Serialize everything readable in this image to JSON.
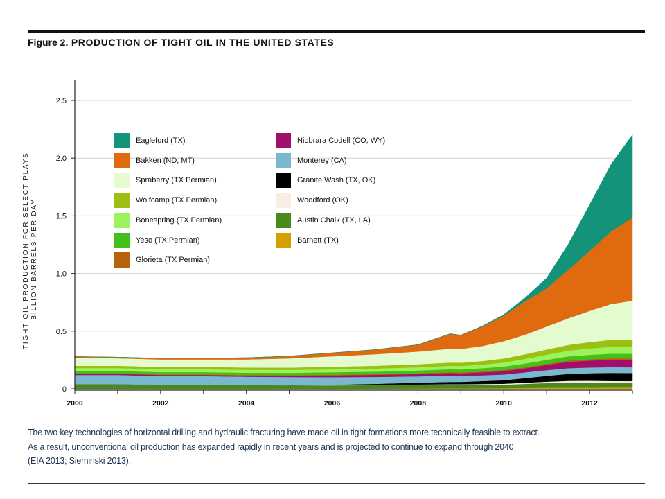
{
  "figure": {
    "label": "Figure 2.",
    "title": "PRODUCTION OF TIGHT OIL IN THE UNITED STATES"
  },
  "caption": [
    "The two key technologies of horizontal drilling and hydraulic fracturing have made oil in tight formations more technically feasible to extract.",
    "As a result, unconventional oil production has expanded rapidly in recent years and is projected to continue to expand through 2040",
    "(EIA 2013; Sieminski 2013)."
  ],
  "chart_data": {
    "type": "area",
    "stacked": true,
    "ylabel_lines": [
      "TIGHT OIL PRODUCTION FOR SELECT PLAYS",
      "BILLION BARRELS PER DAY"
    ],
    "xlabel": "",
    "x_ticks": [
      "2000",
      "2002",
      "2004",
      "2006",
      "2008",
      "2010",
      "2012"
    ],
    "y_ticks": [
      "0",
      "0.5",
      "1.0",
      "1.5",
      "2.0",
      "2.5"
    ],
    "xlim": [
      2000,
      2013
    ],
    "ylim": [
      0,
      2.5
    ],
    "grid": "horizontal",
    "legend_position": "top-left",
    "x": [
      2000,
      2001,
      2002,
      2003,
      2004,
      2005,
      2006,
      2007,
      2008,
      2008.75,
      2009,
      2009.5,
      2010,
      2010.5,
      2011,
      2011.5,
      2012,
      2012.5,
      2013
    ],
    "series": [
      {
        "name": "Barnett (TX)",
        "color": "#d4a000",
        "values": [
          0,
          0,
          0,
          0,
          0,
          0,
          0,
          0.002,
          0.003,
          0.004,
          0.004,
          0.005,
          0.006,
          0.008,
          0.01,
          0.01,
          0.01,
          0.012,
          0.012
        ]
      },
      {
        "name": "Austin Chalk (TX, LA)",
        "color": "#4a8a1a",
        "values": [
          0.04,
          0.04,
          0.035,
          0.035,
          0.035,
          0.03,
          0.03,
          0.03,
          0.03,
          0.03,
          0.03,
          0.03,
          0.03,
          0.035,
          0.04,
          0.045,
          0.045,
          0.04,
          0.04
        ]
      },
      {
        "name": "Woodford (OK)",
        "color": "#f5ebe0",
        "values": [
          0,
          0,
          0,
          0,
          0,
          0,
          0.002,
          0.003,
          0.005,
          0.006,
          0.006,
          0.007,
          0.008,
          0.01,
          0.012,
          0.014,
          0.015,
          0.016,
          0.015
        ]
      },
      {
        "name": "Granite Wash (TX, OK)",
        "color": "#000000",
        "values": [
          0,
          0,
          0,
          0,
          0,
          0.002,
          0.004,
          0.008,
          0.015,
          0.02,
          0.02,
          0.025,
          0.03,
          0.04,
          0.05,
          0.06,
          0.065,
          0.07,
          0.07
        ]
      },
      {
        "name": "Monterey (CA)",
        "color": "#7ab8d0",
        "values": [
          0.08,
          0.08,
          0.075,
          0.075,
          0.07,
          0.07,
          0.065,
          0.06,
          0.055,
          0.055,
          0.05,
          0.05,
          0.05,
          0.05,
          0.05,
          0.05,
          0.05,
          0.05,
          0.05
        ]
      },
      {
        "name": "Niobrara Codell (CO, WY)",
        "color": "#a0106a",
        "values": [
          0.01,
          0.01,
          0.01,
          0.01,
          0.01,
          0.012,
          0.015,
          0.018,
          0.02,
          0.022,
          0.024,
          0.026,
          0.03,
          0.035,
          0.045,
          0.055,
          0.06,
          0.065,
          0.065
        ]
      },
      {
        "name": "Glorieta (TX Permian)",
        "color": "#b8620a",
        "values": [
          0.005,
          0.005,
          0.005,
          0.005,
          0.005,
          0.005,
          0.006,
          0.006,
          0.007,
          0.008,
          0.008,
          0.008,
          0.009,
          0.01,
          0.01,
          0.011,
          0.012,
          0.012,
          0.012
        ]
      },
      {
        "name": "Yeso (TX Permian)",
        "color": "#44c01a",
        "values": [
          0.02,
          0.02,
          0.02,
          0.02,
          0.02,
          0.02,
          0.022,
          0.022,
          0.024,
          0.025,
          0.026,
          0.028,
          0.03,
          0.032,
          0.034,
          0.036,
          0.038,
          0.04,
          0.04
        ]
      },
      {
        "name": "Bonespring (TX Permian)",
        "color": "#9cf25a",
        "values": [
          0.025,
          0.025,
          0.025,
          0.025,
          0.025,
          0.025,
          0.026,
          0.027,
          0.028,
          0.03,
          0.03,
          0.032,
          0.035,
          0.04,
          0.045,
          0.05,
          0.055,
          0.06,
          0.06
        ]
      },
      {
        "name": "Wolfcamp (TX Permian)",
        "color": "#9cbf12",
        "values": [
          0.02,
          0.02,
          0.02,
          0.02,
          0.02,
          0.02,
          0.022,
          0.024,
          0.026,
          0.028,
          0.028,
          0.03,
          0.035,
          0.04,
          0.045,
          0.05,
          0.055,
          0.06,
          0.06
        ]
      },
      {
        "name": "Spraberry (TX Permian)",
        "color": "#e4fbd0",
        "values": [
          0.07,
          0.065,
          0.065,
          0.065,
          0.07,
          0.08,
          0.09,
          0.1,
          0.11,
          0.12,
          0.12,
          0.13,
          0.15,
          0.17,
          0.2,
          0.23,
          0.27,
          0.31,
          0.34
        ]
      },
      {
        "name": "Bakken (ND, MT)",
        "color": "#e06a10",
        "values": [
          0.01,
          0.01,
          0.01,
          0.012,
          0.015,
          0.02,
          0.03,
          0.04,
          0.06,
          0.13,
          0.12,
          0.17,
          0.22,
          0.29,
          0.33,
          0.42,
          0.52,
          0.63,
          0.72
        ]
      },
      {
        "name": "Eagleford (TX)",
        "color": "#13937a",
        "values": [
          0,
          0,
          0,
          0,
          0,
          0,
          0,
          0,
          0,
          0,
          0,
          0.004,
          0.01,
          0.03,
          0.09,
          0.22,
          0.4,
          0.58,
          0.72
        ]
      }
    ],
    "legend_columns": [
      [
        "Eagleford (TX)",
        "Bakken (ND, MT)",
        "Spraberry (TX Permian)",
        "Wolfcamp (TX Permian)",
        "Bonespring (TX Permian)",
        "Yeso (TX Permian)",
        "Glorieta (TX Permian)"
      ],
      [
        "Niobrara Codell (CO, WY)",
        "Monterey (CA)",
        "Granite Wash (TX, OK)",
        "Woodford (OK)",
        "Austin Chalk (TX, LA)",
        "Barnett (TX)"
      ]
    ]
  }
}
